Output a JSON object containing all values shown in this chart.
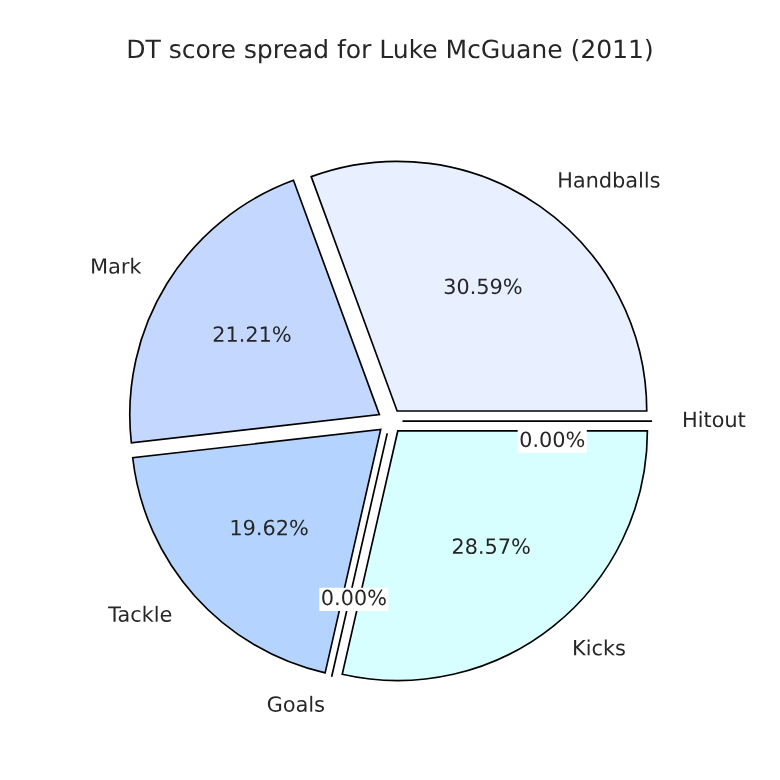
{
  "chart_data": {
    "type": "pie",
    "title": "DT score spread for Luke McGuane (2011)",
    "categories": [
      "Handballs",
      "Mark",
      "Tackle",
      "Goals",
      "Kicks",
      "Hitout"
    ],
    "values": [
      30.59,
      21.21,
      19.62,
      0,
      28.57,
      0
    ],
    "value_labels": [
      "30.59%",
      "21.21%",
      "19.62%",
      "0.00%",
      "28.57%",
      "0.00%"
    ],
    "colors": [
      "#e8f0ff",
      "#c4d8ff",
      "#b4d4ff",
      "#b0d0ff",
      "#d8ffff",
      "#ffffff"
    ]
  }
}
